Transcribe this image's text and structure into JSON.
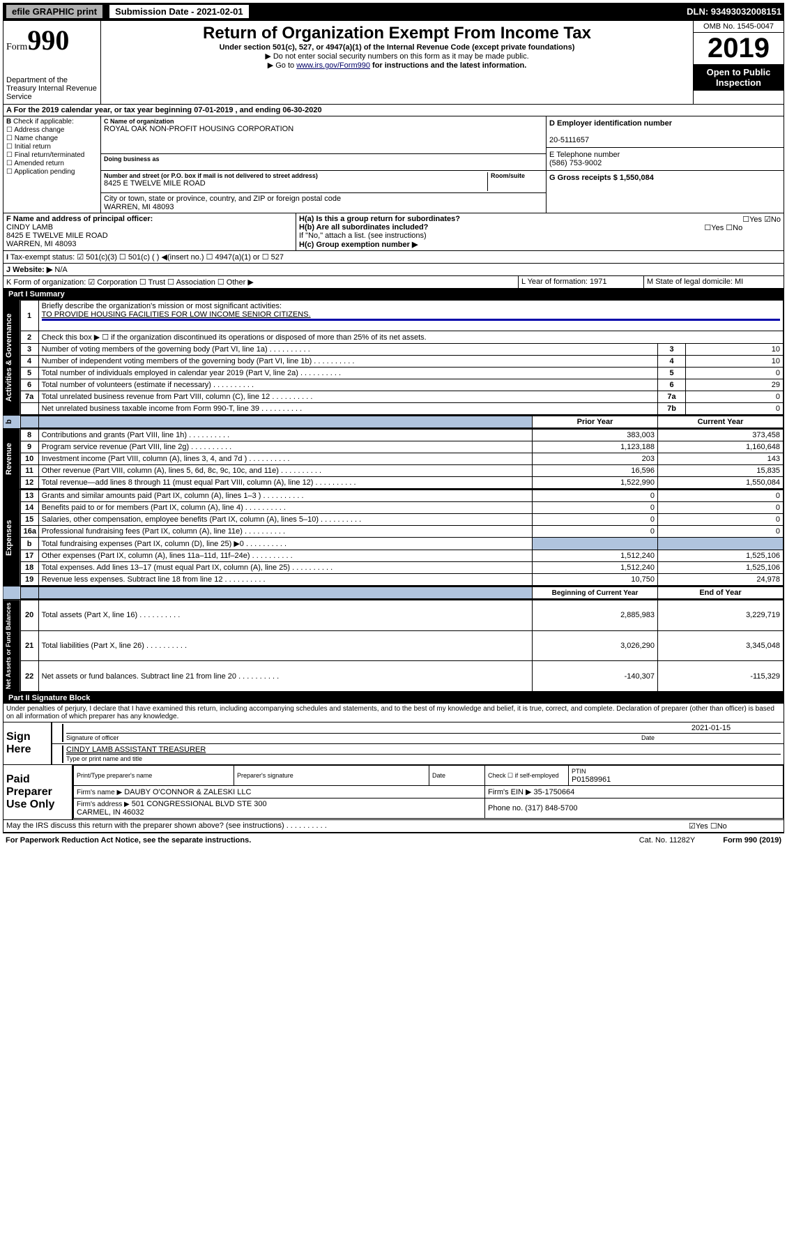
{
  "topbar": {
    "efile": "efile GRAPHIC print",
    "subdate_label": "Submission Date - 2021-02-01",
    "dln": "DLN: 93493032008151"
  },
  "header": {
    "form_prefix": "Form",
    "form_number": "990",
    "dept": "Department of the Treasury\nInternal Revenue Service",
    "title": "Return of Organization Exempt From Income Tax",
    "line1": "Under section 501(c), 527, or 4947(a)(1) of the Internal Revenue Code (except private foundations)",
    "line2": "▶ Do not enter social security numbers on this form as it may be made public.",
    "line3a": "▶ Go to ",
    "line3_link": "www.irs.gov/Form990",
    "line3b": " for instructions and the latest information.",
    "omb": "OMB No. 1545-0047",
    "year": "2019",
    "open": "Open to Public Inspection"
  },
  "periodA": "For the 2019 calendar year, or tax year beginning 07-01-2019   , and ending 06-30-2020",
  "sectionB": {
    "label": "Check if applicable:",
    "items": [
      "Address change",
      "Name change",
      "Initial return",
      "Final return/terminated",
      "Amended return",
      "Application pending"
    ]
  },
  "org": {
    "name_lbl": "C Name of organization",
    "name": "ROYAL OAK NON-PROFIT HOUSING CORPORATION",
    "dba_lbl": "Doing business as",
    "addr_lbl": "Number and street (or P.O. box if mail is not delivered to street address)",
    "room_lbl": "Room/suite",
    "addr": "8425 E TWELVE MILE ROAD",
    "city_lbl": "City or town, state or province, country, and ZIP or foreign postal code",
    "city": "WARREN, MI  48093"
  },
  "sectionD": {
    "lbl": "D Employer identification number",
    "val": "20-5111657"
  },
  "sectionE": {
    "lbl": "E Telephone number",
    "val": "(586) 753-9002"
  },
  "sectionG": "G Gross receipts $ 1,550,084",
  "sectionF": {
    "lbl": "F  Name and address of principal officer:",
    "name": "CINDY LAMB",
    "addr1": "8425 E TWELVE MILE ROAD",
    "addr2": "WARREN, MI  48093"
  },
  "sectionH": {
    "ha": "H(a)  Is this a group return for subordinates?",
    "ha_ans": "☐Yes ☑No",
    "hb": "H(b)  Are all subordinates included?",
    "hb_ans": "☐Yes ☐No",
    "hb_note": "If \"No,\" attach a list. (see instructions)",
    "hc": "H(c)  Group exemption number ▶"
  },
  "sectionI": {
    "lbl": "Tax-exempt status:",
    "opts": "☑ 501(c)(3)   ☐ 501(c) (  ) ◀(insert no.)    ☐ 4947(a)(1) or   ☐ 527"
  },
  "sectionJ": {
    "lbl": "J   Website: ▶",
    "val": "N/A"
  },
  "sectionK": "K Form of organization:  ☑ Corporation  ☐ Trust  ☐ Association  ☐ Other ▶",
  "sectionL": "L Year of formation: 1971",
  "sectionM": "M State of legal domicile: MI",
  "part1": {
    "hdr": "Part I      Summary",
    "sidetab1": "Activities & Governance",
    "q1": "Briefly describe the organization's mission or most significant activities:",
    "q1v": "TO PROVIDE HOUSING FACILITIES FOR LOW INCOME SENIOR CITIZENS.",
    "q2": "Check this box ▶ ☐  if the organization discontinued its operations or disposed of more than 25% of its net assets.",
    "lines_gov": [
      {
        "n": "3",
        "t": "Number of voting members of the governing body (Part VI, line 1a)",
        "box": "3",
        "v": "10"
      },
      {
        "n": "4",
        "t": "Number of independent voting members of the governing body (Part VI, line 1b)",
        "box": "4",
        "v": "10"
      },
      {
        "n": "5",
        "t": "Total number of individuals employed in calendar year 2019 (Part V, line 2a)",
        "box": "5",
        "v": "0"
      },
      {
        "n": "6",
        "t": "Total number of volunteers (estimate if necessary)",
        "box": "6",
        "v": "29"
      },
      {
        "n": "7a",
        "t": "Total unrelated business revenue from Part VIII, column (C), line 12",
        "box": "7a",
        "v": "0"
      },
      {
        "n": "",
        "t": "Net unrelated business taxable income from Form 990-T, line 39",
        "box": "7b",
        "v": "0"
      }
    ],
    "col_prior": "Prior Year",
    "col_curr": "Current Year",
    "sidetab2": "Revenue",
    "lines_rev": [
      {
        "n": "8",
        "t": "Contributions and grants (Part VIII, line 1h)",
        "p": "383,003",
        "c": "373,458"
      },
      {
        "n": "9",
        "t": "Program service revenue (Part VIII, line 2g)",
        "p": "1,123,188",
        "c": "1,160,648"
      },
      {
        "n": "10",
        "t": "Investment income (Part VIII, column (A), lines 3, 4, and 7d )",
        "p": "203",
        "c": "143"
      },
      {
        "n": "11",
        "t": "Other revenue (Part VIII, column (A), lines 5, 6d, 8c, 9c, 10c, and 11e)",
        "p": "16,596",
        "c": "15,835"
      },
      {
        "n": "12",
        "t": "Total revenue—add lines 8 through 11 (must equal Part VIII, column (A), line 12)",
        "p": "1,522,990",
        "c": "1,550,084"
      }
    ],
    "sidetab3": "Expenses",
    "lines_exp": [
      {
        "n": "13",
        "t": "Grants and similar amounts paid (Part IX, column (A), lines 1–3 )",
        "p": "0",
        "c": "0"
      },
      {
        "n": "14",
        "t": "Benefits paid to or for members (Part IX, column (A), line 4)",
        "p": "0",
        "c": "0"
      },
      {
        "n": "15",
        "t": "Salaries, other compensation, employee benefits (Part IX, column (A), lines 5–10)",
        "p": "0",
        "c": "0"
      },
      {
        "n": "16a",
        "t": "Professional fundraising fees (Part IX, column (A), line 11e)",
        "p": "0",
        "c": "0"
      },
      {
        "n": "b",
        "t": "Total fundraising expenses (Part IX, column (D), line 25) ▶0",
        "p": "",
        "c": "",
        "shade": true
      },
      {
        "n": "17",
        "t": "Other expenses (Part IX, column (A), lines 11a–11d, 11f–24e)",
        "p": "1,512,240",
        "c": "1,525,106"
      },
      {
        "n": "18",
        "t": "Total expenses. Add lines 13–17 (must equal Part IX, column (A), line 25)",
        "p": "1,512,240",
        "c": "1,525,106"
      },
      {
        "n": "19",
        "t": "Revenue less expenses. Subtract line 18 from line 12",
        "p": "10,750",
        "c": "24,978"
      }
    ],
    "col_beg": "Beginning of Current Year",
    "col_end": "End of Year",
    "sidetab4": "Net Assets or Fund Balances",
    "lines_net": [
      {
        "n": "20",
        "t": "Total assets (Part X, line 16)",
        "p": "2,885,983",
        "c": "3,229,719"
      },
      {
        "n": "21",
        "t": "Total liabilities (Part X, line 26)",
        "p": "3,026,290",
        "c": "3,345,048"
      },
      {
        "n": "22",
        "t": "Net assets or fund balances. Subtract line 21 from line 20",
        "p": "-140,307",
        "c": "-115,329"
      }
    ]
  },
  "part2": {
    "hdr": "Part II      Signature Block",
    "perjury": "Under penalties of perjury, I declare that I have examined this return, including accompanying schedules and statements, and to the best of my knowledge and belief, it is true, correct, and complete. Declaration of preparer (other than officer) is based on all information of which preparer has any knowledge.",
    "sign_here": "Sign Here",
    "sig_date": "2021-01-15",
    "sig_officer": "Signature of officer",
    "sig_date_lbl": "Date",
    "sig_name": "CINDY LAMB  ASSISTANT TREASURER",
    "sig_type": "Type or print name and title",
    "paid": "Paid Preparer Use Only",
    "prep_name_lbl": "Print/Type preparer's name",
    "prep_sig_lbl": "Preparer's signature",
    "prep_date_lbl": "Date",
    "prep_check": "Check ☐ if self-employed",
    "ptin_lbl": "PTIN",
    "ptin": "P01589961",
    "firm_name_lbl": "Firm's name    ▶",
    "firm_name": "DAUBY O'CONNOR & ZALESKI LLC",
    "firm_ein": "Firm's EIN ▶ 35-1750664",
    "firm_addr_lbl": "Firm's address ▶",
    "firm_addr": "501 CONGRESSIONAL BLVD STE 300\nCARMEL, IN  46032",
    "firm_phone": "Phone no. (317) 848-5700",
    "discuss": "May the IRS discuss this return with the preparer shown above? (see instructions)",
    "discuss_ans": "☑Yes  ☐No"
  },
  "footer": {
    "pra": "For Paperwork Reduction Act Notice, see the separate instructions.",
    "cat": "Cat. No. 11282Y",
    "form": "Form 990 (2019)"
  }
}
